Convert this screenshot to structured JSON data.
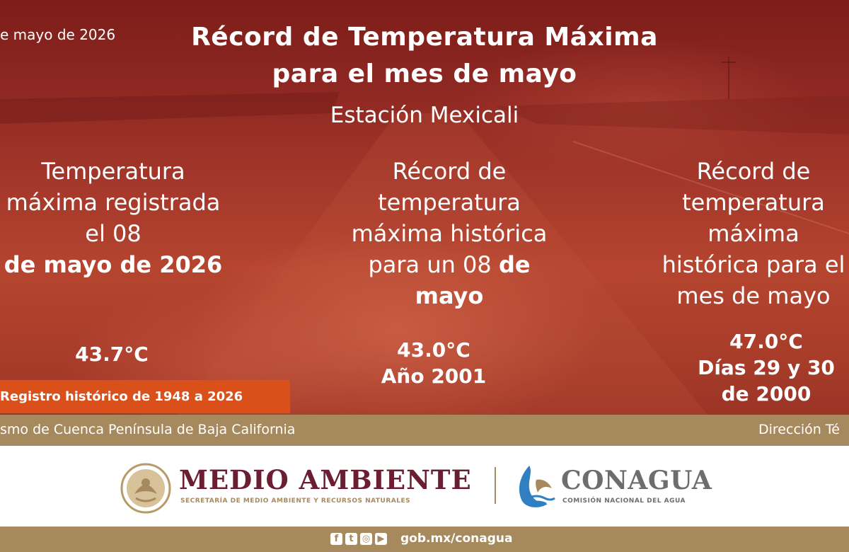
{
  "header": {
    "date": "e mayo de 2026",
    "title_line1": "Récord de Temperatura Máxima",
    "title_line2": "para el mes de mayo",
    "station": "Estación Mexicali"
  },
  "columns": [
    {
      "lines": [
        "Temperatura",
        "máxima registrada",
        "el 08"
      ],
      "bold_line": "de  mayo de 2026",
      "value": "43.7°C"
    },
    {
      "lines": [
        "Récord de",
        "temperatura",
        "máxima histórica"
      ],
      "line4_regular": "para un 08 ",
      "line4_bold": "de",
      "bold_line": "mayo",
      "value": "43.0°C",
      "value_sub": "Año 2001"
    },
    {
      "lines": [
        "Récord de",
        "temperatura",
        "máxima",
        "histórica para el",
        "mes de mayo"
      ],
      "value": "47.0°C",
      "value_sub": "Días 29 y 30",
      "value_sub2": "de 2000"
    }
  ],
  "registro": "Registro histórico  de 1948 a 2026",
  "org_bar": {
    "left": "smo de Cuenca Península de Baja California",
    "right": "Dirección Té"
  },
  "footer": {
    "medio_ambiente": "MEDIO AMBIENTE",
    "medio_ambiente_sub": "SECRETARÍA DE MEDIO AMBIENTE Y RECURSOS NATURALES",
    "conagua": "CONAGUA",
    "conagua_sub": "COMISIÓN NACIONAL DEL AGUA",
    "website": "gob.mx/conagua",
    "social_icons": [
      "facebook-icon",
      "twitter-icon",
      "instagram-icon",
      "youtube-icon"
    ]
  },
  "colors": {
    "background_red": "#9b3426",
    "accent_orange": "#d9501b",
    "gold": "#a7895e",
    "medio_ambiente": "#6b1e31",
    "conagua_gray": "#6d6d6d"
  }
}
